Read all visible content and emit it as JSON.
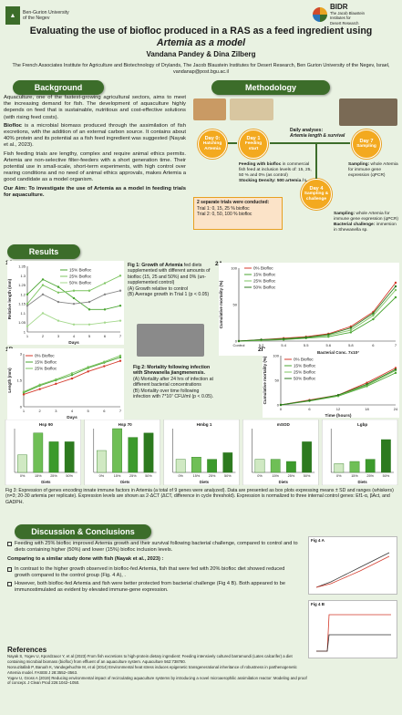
{
  "header": {
    "logo_left_line1": "Ben-Gurion University",
    "logo_left_line2": "of the Negev",
    "logo_right_name": "BIDR",
    "logo_right_line1": "The Jacob Blaustein",
    "logo_right_line2": "Institutes for",
    "logo_right_line3": "Desert Research",
    "title_line1": "Evaluating the use of biofloc produced in a RAS as a feed ingredient using",
    "title_line2": "Artemia as a model",
    "authors": "Vandana Pandey & Dina Zilberg",
    "affiliation": "The French Associates Institute for Agriculture and Biotechnology of Drylands, The Jacob Blaustein Institutes for Desert Research, Ben Gurion University of the Negev, Israel, vandanap@post.bgu.ac.il"
  },
  "background": {
    "heading": "Background",
    "p1": "Aquaculture, one of the fastest-growing agricultural sectors, aims to meet the increasing demand for fish. The development of aquaculture highly depends on feed that is sustainable, nutritious and cost-effective solutions (with rising feed costs).",
    "p2_bold": "Biofloc",
    "p2": " is a microbial biomass produced through the assimilation of fish excretions, with the addition of an external carbon source. It contains about 40% protein and its potential as a fish feed ingredient was suggested (Nayak et al., 2023).",
    "p3": "Fish feeding trials are lengthy, complex and require animal ethics permits. Artemia are non-selective filter-feeders with a short generation time. Their potential use in small-scale, short-term experiments, with high control over rearing conditions and no need of animal ethics approvals, makes Artemia a good candidate as a model organism.",
    "aim": "Our Aim: To investigate the use of Artemia as a model in feeding trials for aquaculture."
  },
  "methodology": {
    "heading": "Methodology",
    "day0": "Day 0:",
    "day0_label": "Hatching Artemia",
    "day1": "Day 1",
    "day1_label": "Feeding start",
    "day7": "Day 7",
    "day7_label": "Sampling",
    "day4": "Day 4",
    "day4_label": "Sampling & challenge",
    "daily": "Daily analyses:",
    "daily_bold": "Artemia length & survival",
    "feeding_bold": "Feeding with biofloc",
    "feeding": " in commercial fish feed at inclusion levels of: 15, 25, 50 % and 0% (as control)",
    "stocking": "Stocking Density: 500 artemia / L",
    "sampling7_bold": "Sampling:",
    "sampling7": " whole Artemia for immune gene expression (qPCR)",
    "sampling4_bold": "Sampling:",
    "sampling4": " whole Artemia for immune gene expression (qPCR)",
    "challenge_bold": "Bacterial challenge:",
    "challenge": " immersion in Shewanella sp.",
    "trials_title": "2 separate trials were conducted:",
    "trial1": "Trial 1: 0, 15, 25 % biofloc",
    "trial2": "Trial 2: 0, 50, 100 % biofloc"
  },
  "results": {
    "heading": "Results",
    "fig1a_label": "1A",
    "fig1b_label": "1B",
    "fig2a_label": "2A",
    "fig2b_label": "2B",
    "fig1_caption_title": "Fig 1: Growth of Artemia",
    "fig1_caption": " fed diets supplemented with different amounts of biofloc (15, 25 and 50%) and 0% (un-supplemented control)",
    "fig1_a": "(A) Growth relative to control",
    "fig1_b": "(B) Average growth in Trial 1 (p < 0.05)",
    "fig2_caption_title": "Fig 2: Mortality following infection with Shewanella jiangmenensis.",
    "fig2_a": "(A) Mortality after 24 hrs of infection at different bacterial concentrations",
    "fig2_b": "(B) Mortality over time following infection with 7*10⁷ CFU/ml (p < 0.05).",
    "fig3_caption": "Fig 3: Expression of genes encoding innate immune factors in Artemia (a total of 9 genes were analyzed). Data are presented as box plots expressing means ± SD and ranges (whiskers) (n=3; 20-30 artemia per replicate). Expression levels are shown as 2-ΔCT (ΔCT, difference in cycle threshold). Expression is normalized to three internal control genes: Ef1-α, βAct, and GADPH."
  },
  "chart_data": [
    {
      "id": "fig1a",
      "type": "line",
      "xlabel": "Days",
      "ylabel": "Relative length (mm)",
      "x": [
        1,
        2,
        3,
        4,
        5,
        6,
        7
      ],
      "ylim": [
        1.0,
        1.35
      ],
      "yticks": [
        1.0,
        1.05,
        1.1,
        1.15,
        1.2,
        1.25,
        1.3,
        1.35
      ],
      "series": [
        {
          "name": "15% Biofloc",
          "color": "#4aa532",
          "values": [
            1.2,
            1.28,
            1.24,
            1.18,
            1.12,
            1.12,
            1.14
          ]
        },
        {
          "name": "25% Biofloc",
          "color": "#7cc460",
          "values": [
            1.15,
            1.25,
            1.21,
            1.22,
            1.22,
            1.26,
            1.3
          ]
        },
        {
          "name": "50% Biofloc",
          "color": "#a4d88c",
          "values": [
            1.03,
            1.1,
            1.06,
            1.04,
            1.04,
            1.05,
            1.06
          ]
        },
        {
          "name": "",
          "color": "#888888",
          "values": [
            1.14,
            1.2,
            1.16,
            1.15,
            1.16,
            1.2,
            1.22
          ]
        }
      ]
    },
    {
      "id": "fig1b",
      "type": "line",
      "xlabel": "Days",
      "ylabel": "Length (mm)",
      "x": [
        1,
        2,
        3,
        4,
        5,
        6,
        7
      ],
      "ylim": [
        0,
        3
      ],
      "series": [
        {
          "name": "0% Biofloc",
          "color": "#d43a2b",
          "values": [
            0.7,
            1.0,
            1.3,
            1.6,
            2.0,
            2.3,
            2.6
          ]
        },
        {
          "name": "15% Biofloc",
          "color": "#4aa532",
          "values": [
            0.8,
            1.2,
            1.5,
            1.8,
            2.2,
            2.5,
            2.8
          ]
        },
        {
          "name": "25% Biofloc",
          "color": "#7cc460",
          "values": [
            0.85,
            1.25,
            1.55,
            1.9,
            2.25,
            2.55,
            2.9
          ]
        }
      ]
    },
    {
      "id": "fig2a",
      "type": "line",
      "xlabel": "Challenged bacterial conc. (×10^7 CFU/mL)",
      "ylabel": "Cumulative mortality (%)",
      "categories": [
        "Control",
        "5.2",
        "5.4",
        "5.5",
        "5.6",
        "5.8",
        "6",
        "7"
      ],
      "ylim": [
        0,
        100
      ],
      "series": [
        {
          "name": "0% Biofloc",
          "color": "#d43a2b",
          "values": [
            0,
            2,
            4,
            6,
            10,
            20,
            40,
            80
          ]
        },
        {
          "name": "15% Biofloc",
          "color": "#4aa532",
          "values": [
            0,
            1,
            2,
            4,
            6,
            12,
            30,
            60
          ]
        },
        {
          "name": "25% Biofloc",
          "color": "#7cc460",
          "values": [
            0,
            1,
            3,
            5,
            8,
            15,
            35,
            70
          ]
        },
        {
          "name": "50% Biofloc",
          "color": "#2d7a1f",
          "values": [
            0,
            2,
            3,
            5,
            9,
            18,
            38,
            75
          ]
        }
      ]
    },
    {
      "id": "fig2b",
      "type": "line",
      "title": "Bacterial Conc. 7x10⁷",
      "xlabel": "Time (hours)",
      "ylabel": "Cumulative mortality (%)",
      "x": [
        0,
        6,
        12,
        18,
        24
      ],
      "ylim": [
        0,
        100
      ],
      "series": [
        {
          "name": "0% Biofloc",
          "color": "#d43a2b",
          "values": [
            0,
            10,
            20,
            45,
            75
          ]
        },
        {
          "name": "15% Biofloc",
          "color": "#4aa532",
          "values": [
            0,
            8,
            18,
            38,
            65
          ]
        },
        {
          "name": "25% Biofloc",
          "color": "#7cc460",
          "values": [
            0,
            9,
            19,
            40,
            70
          ]
        },
        {
          "name": "50% Biofloc",
          "color": "#2d7a1f",
          "values": [
            0,
            9,
            20,
            42,
            72
          ]
        }
      ]
    },
    {
      "id": "fig3",
      "type": "bar",
      "categories": [
        "0%",
        "15%",
        "25%",
        "50%"
      ],
      "xlabel": "Diets",
      "panels": [
        {
          "title": "Hsp 90",
          "values": [
            0.4,
            0.9,
            0.7,
            0.7
          ]
        },
        {
          "title": "Hsp 70",
          "values": [
            0.5,
            1.0,
            0.8,
            0.9
          ]
        },
        {
          "title": "Hmbg 1",
          "values": [
            0.3,
            0.35,
            0.3,
            0.45
          ]
        },
        {
          "title": "mSOD",
          "values": [
            0.3,
            0.3,
            0.25,
            0.7
          ]
        },
        {
          "title": "Lgbp",
          "values": [
            0.2,
            0.25,
            0.3,
            0.75
          ]
        }
      ]
    }
  ],
  "discussion": {
    "heading": "Discussion & Conclusions",
    "b1": "Feeding with 25% biofloc improved Artemia growth and their survival following bacterial challenge, compared to control and to diets containing higher (50%) and lower (15%) biofloc inclusion levels.",
    "compare": "Comparing to a similar study done with fish (Nayak et al., 2023) :",
    "b2": "In contrast to the higher growth observed in biofloc-fed Artemia, fish that were fed with 20% biofloc diet showed reduced growth compared to the control group (Fig. 4 A), .",
    "b3": "However, both biofloc-fed Artemia and fish were better protected from bacterial challenge (Fig 4 B). Both appeared to be immunostimulated as evident by elevated immune-gene expression.",
    "fig4a": "Fig 4 A",
    "fig4b": "Fig 4 B"
  },
  "references": {
    "heading": "References",
    "r1": "Nayak S, Yogev U, Kpordzaxor Y, et al (2023) From fish excretions to high-protein dietary ingredient: Feeding intensively cultured barramundi (Lates calcarifer) a diet containing microbial biomass (biofloc) from effluent of an aquaculture system. Aquaculture 562:738780.",
    "r2": "Norouzitallab P, Baruah K, Vandegehuchte M, et al (2014) Environmental heat stress induces epigenetic transgenerational inheritance of robustness in parthenogenetic Artemia model. FASEB J 28:3552–3563.",
    "r3": "Yogev U, Gross A (2019) Reducing environmental impact of recirculating aquaculture systems by introducing a novel microaerophilic assimilation reactor: Modeling and proof of concept. J Clean Prod 226:1042–1050."
  }
}
